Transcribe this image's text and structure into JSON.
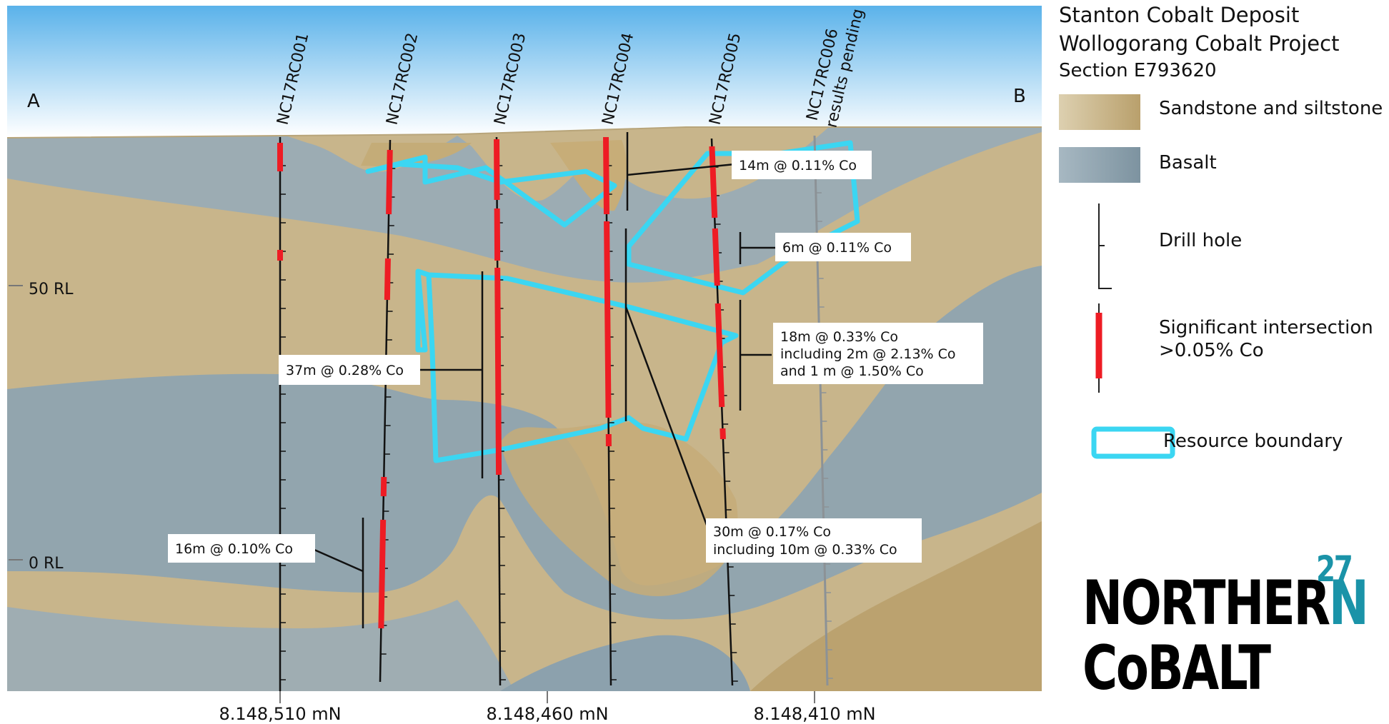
{
  "section_ends": {
    "left": "A",
    "right": "B"
  },
  "title": {
    "line1": "Stanton Cobalt Deposit",
    "line2": "Wollogorang Cobalt Project",
    "line3": "Section E793620"
  },
  "legend": {
    "sandstone": "Sandstone and siltstone",
    "basalt": "Basalt",
    "drill_hole": "Drill hole",
    "intersection": "Significant intersection >0.05% Co",
    "resource": "Resource boundary"
  },
  "drill_holes": [
    {
      "id": "NC17RC001",
      "label": "NC17RC001"
    },
    {
      "id": "NC17RC002",
      "label": "NC17RC002"
    },
    {
      "id": "NC17RC003",
      "label": "NC17RC003"
    },
    {
      "id": "NC17RC004",
      "label": "NC17RC004"
    },
    {
      "id": "NC17RC005",
      "label": "NC17RC005"
    },
    {
      "id": "NC17RC006",
      "label": "NC17RC006",
      "note": "results pending"
    }
  ],
  "annotations": {
    "a14": "14m @ 0.11% Co",
    "a6": "6m @ 0.11% Co",
    "a18": [
      "18m @ 0.33% Co",
      "including 2m @ 2.13% Co",
      "and 1 m @ 1.50% Co"
    ],
    "a37": "37m @ 0.28% Co",
    "a30": [
      "30m @ 0.17% Co",
      "including 10m @ 0.33% Co"
    ],
    "a16": "16m @ 0.10% Co"
  },
  "rl_labels": [
    "50 RL",
    "0 RL"
  ],
  "northings": [
    "8.148,510 mN",
    "8.148,460 mN",
    "8.148,410 mN"
  ],
  "logo": {
    "word1": "NORTHER",
    "word1_end": "N",
    "superscript": "27",
    "word2": "CoBALT"
  },
  "colors": {
    "sandstone": "#c9b58a",
    "basalt": "#8ea3ae",
    "sky": "#5fb6ea",
    "intersection": "#ee1c24",
    "resource": "#3bd6f2",
    "logo_teal": "#1a93a8"
  }
}
